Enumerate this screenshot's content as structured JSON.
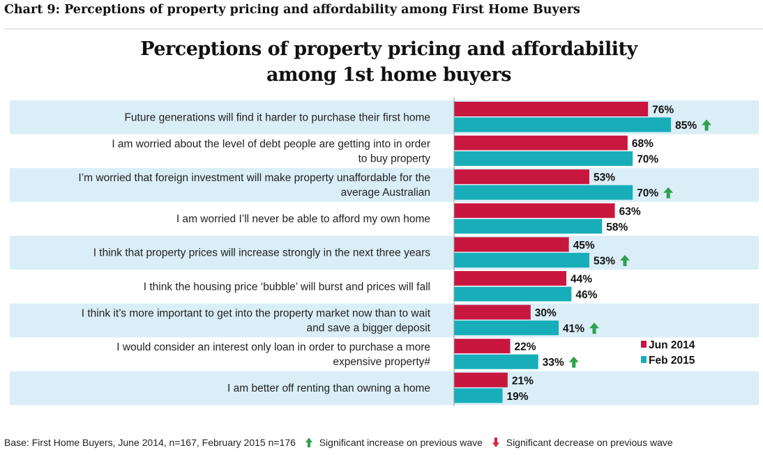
{
  "figure_title": "Chart 9: Perceptions of property pricing and affordability among First Home Buyers",
  "chart_title_line1": "Perceptions of property pricing and affordability",
  "chart_title_line2": "among 1st home buyers",
  "colors": {
    "jun2014": "#c8173f",
    "feb2015": "#17aeb9",
    "band": "#daeef7",
    "significant_increase": "#2da14b",
    "significant_decrease": "#d6233c"
  },
  "chart_data": {
    "type": "bar",
    "orientation": "horizontal",
    "categories": [
      [
        "Future generations will find it harder to purchase their first home"
      ],
      [
        "I am worried about the level of debt people are getting into in order",
        "to buy property"
      ],
      [
        "I’m worried that foreign investment will make property unaffordable for the",
        "average Australian"
      ],
      [
        "I am worried I’ll never be able to afford my own home"
      ],
      [
        "I think that property prices will increase strongly in the next three years"
      ],
      [
        "I think the housing price ‘bubble’ will burst and prices will fall"
      ],
      [
        "I think it’s more important to get into the property market now than to wait",
        "and save a bigger deposit"
      ],
      [
        "I would consider an interest only loan in order to purchase a more",
        "expensive property#"
      ],
      [
        "I am better off renting than owning a home"
      ]
    ],
    "series": [
      {
        "name": "Jun 2014",
        "values": [
          76,
          68,
          53,
          63,
          45,
          44,
          30,
          22,
          21
        ],
        "labels": [
          "76%",
          "68%",
          "53%",
          "63%",
          "45%",
          "44%",
          "30%",
          "22%",
          "21%"
        ]
      },
      {
        "name": "Feb 2015",
        "values": [
          85,
          70,
          70,
          58,
          53,
          46,
          41,
          33,
          19
        ],
        "labels": [
          "85%",
          "70%",
          "70%",
          "58%",
          "53%",
          "46%",
          "41%",
          "33%",
          "19%"
        ],
        "significant_increase": [
          true,
          false,
          true,
          false,
          true,
          false,
          true,
          true,
          false
        ]
      }
    ],
    "xlim": [
      0,
      100
    ],
    "legend_position": "right",
    "alternating_bands": true
  },
  "footer": {
    "base": "Base: First Home Buyers, June 2014, n=167, February 2015 n=176",
    "increase_legend": "Significant increase on previous wave",
    "decrease_legend": "Significant decrease on previous wave"
  }
}
